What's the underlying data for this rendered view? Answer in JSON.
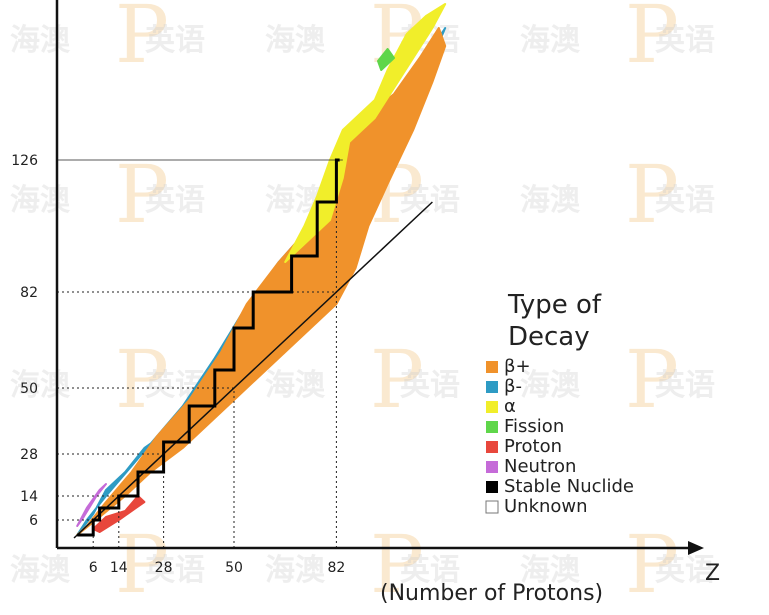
{
  "watermark": {
    "text_left": "海澳",
    "text_right": "英语",
    "logo_letter": "P"
  },
  "chart_data": {
    "type": "heatmap",
    "title": "",
    "xlabel": "Z",
    "xlabel_sub": "(Number of Protons)",
    "ylabel": "",
    "xlim": [
      0,
      118
    ],
    "ylim": [
      0,
      180
    ],
    "x_ticks": [
      "6",
      "14",
      "28",
      "50",
      "82"
    ],
    "x_tick_values": [
      6,
      14,
      28,
      50,
      82
    ],
    "y_ticks": [
      "6",
      "14",
      "28",
      "50",
      "82",
      "126"
    ],
    "y_tick_values": [
      6,
      14,
      28,
      50,
      82,
      126
    ],
    "reference_line": {
      "description": "N = Z",
      "from": [
        0,
        0
      ],
      "to": [
        112,
        112
      ]
    },
    "regions": [
      {
        "name": "β-",
        "color": "#2e9bc4",
        "polygon": [
          [
            1,
            1
          ],
          [
            6,
            8
          ],
          [
            10,
            16
          ],
          [
            16,
            22
          ],
          [
            22,
            30
          ],
          [
            30,
            36
          ],
          [
            36,
            46
          ],
          [
            44,
            56
          ],
          [
            50,
            68
          ],
          [
            58,
            78
          ],
          [
            66,
            88
          ],
          [
            76,
            100
          ],
          [
            82,
            108
          ],
          [
            90,
            116
          ],
          [
            100,
            128
          ],
          [
            106,
            146
          ],
          [
            112,
            160
          ],
          [
            116,
            170
          ],
          [
            110,
            160
          ],
          [
            96,
            136
          ],
          [
            84,
            124
          ],
          [
            74,
            104
          ],
          [
            64,
            92
          ],
          [
            52,
            74
          ],
          [
            44,
            60
          ],
          [
            34,
            44
          ],
          [
            26,
            34
          ],
          [
            18,
            24
          ],
          [
            10,
            14
          ],
          [
            4,
            6
          ]
        ]
      },
      {
        "name": "β+",
        "color": "#f0922b",
        "polygon": [
          [
            1,
            1
          ],
          [
            8,
            7
          ],
          [
            16,
            14
          ],
          [
            24,
            22
          ],
          [
            34,
            30
          ],
          [
            44,
            40
          ],
          [
            50,
            46
          ],
          [
            58,
            54
          ],
          [
            66,
            62
          ],
          [
            74,
            70
          ],
          [
            82,
            78
          ],
          [
            88,
            90
          ],
          [
            92,
            104
          ],
          [
            98,
            118
          ],
          [
            106,
            136
          ],
          [
            112,
            152
          ],
          [
            116,
            164
          ],
          [
            114,
            170
          ],
          [
            108,
            160
          ],
          [
            100,
            148
          ],
          [
            86,
            136
          ],
          [
            80,
            120
          ],
          [
            74,
            104
          ],
          [
            64,
            92
          ],
          [
            54,
            78
          ],
          [
            46,
            62
          ],
          [
            36,
            46
          ],
          [
            26,
            34
          ],
          [
            18,
            22
          ],
          [
            10,
            12
          ],
          [
            4,
            4
          ]
        ]
      },
      {
        "name": "α",
        "color": "#f1ee2a",
        "polygon": [
          [
            66,
            92
          ],
          [
            74,
            100
          ],
          [
            80,
            106
          ],
          [
            84,
            120
          ],
          [
            86,
            132
          ],
          [
            94,
            140
          ],
          [
            100,
            150
          ],
          [
            106,
            160
          ],
          [
            112,
            170
          ],
          [
            116,
            178
          ],
          [
            110,
            174
          ],
          [
            104,
            168
          ],
          [
            98,
            156
          ],
          [
            94,
            146
          ],
          [
            84,
            136
          ],
          [
            80,
            126
          ],
          [
            76,
            114
          ],
          [
            72,
            104
          ]
        ]
      },
      {
        "name": "Fission",
        "color": "#5fd64a",
        "polygon": [
          [
            96,
            156
          ],
          [
            100,
            160
          ],
          [
            98,
            163
          ],
          [
            95,
            159
          ]
        ]
      },
      {
        "name": "Proton",
        "color": "#e8473c",
        "polygon": [
          [
            6,
            3
          ],
          [
            10,
            7
          ],
          [
            16,
            9
          ],
          [
            20,
            14
          ],
          [
            22,
            12
          ],
          [
            14,
            6
          ],
          [
            8,
            2
          ]
        ]
      },
      {
        "name": "Neutron",
        "color": "#c56bd8",
        "polygon": [
          [
            1,
            4
          ],
          [
            4,
            10
          ],
          [
            8,
            16
          ],
          [
            10,
            18
          ],
          [
            7,
            14
          ],
          [
            3,
            7
          ]
        ]
      }
    ],
    "stable_line": [
      [
        1,
        1
      ],
      [
        6,
        6
      ],
      [
        8,
        10
      ],
      [
        14,
        14
      ],
      [
        20,
        22
      ],
      [
        28,
        32
      ],
      [
        36,
        44
      ],
      [
        44,
        56
      ],
      [
        50,
        70
      ],
      [
        56,
        82
      ],
      [
        60,
        82
      ],
      [
        68,
        94
      ],
      [
        76,
        112
      ],
      [
        82,
        126
      ],
      [
        83,
        126
      ]
    ],
    "legend": {
      "title_line1": "Type of",
      "title_line2": "Decay",
      "position": "right",
      "entries": [
        {
          "label": "β+",
          "color": "#f0922b"
        },
        {
          "label": "β-",
          "color": "#2e9bc4"
        },
        {
          "label": "α",
          "color": "#f1ee2a"
        },
        {
          "label": "Fission",
          "color": "#5fd64a"
        },
        {
          "label": "Proton",
          "color": "#e8473c"
        },
        {
          "label": "Neutron",
          "color": "#c56bd8"
        },
        {
          "label": "Stable Nuclide",
          "color": "#000000"
        },
        {
          "label": "Unknown",
          "color": "#ffffff"
        }
      ]
    }
  }
}
